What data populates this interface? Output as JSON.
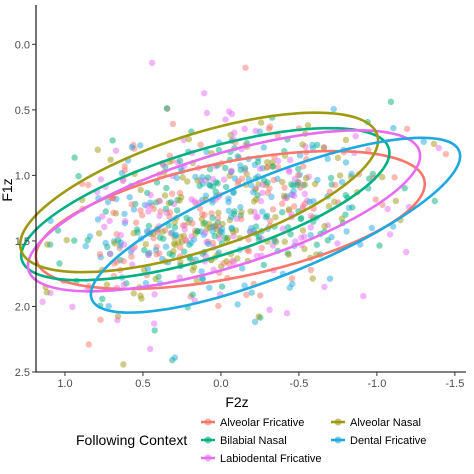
{
  "chart_data": {
    "type": "scatter",
    "xlabel": "F2z",
    "ylabel": "F1z",
    "xlim": [
      1.1857,
      -1.5714
    ],
    "ylim": [
      2.5,
      -0.3
    ],
    "x_reversed": true,
    "y_reversed": true,
    "x_ticks": [
      "1.0",
      "0.5",
      "0.0",
      "-0.5",
      "-1.0",
      "-1.5"
    ],
    "x_tick_values": [
      1.0,
      0.5,
      0.0,
      -0.5,
      -1.0,
      -1.5
    ],
    "y_ticks": [
      "0.0",
      "0.5",
      "1.0",
      "1.5",
      "2.0",
      "2.5"
    ],
    "y_tick_values": [
      0.0,
      0.5,
      1.0,
      1.5,
      2.0,
      2.5
    ],
    "grid": false,
    "legend": {
      "title": "Following Context",
      "placement": "bottom",
      "columns": [
        [
          {
            "label": "Alveolar Fricative",
            "series": 0
          },
          {
            "label": "Bilabial Nasal",
            "series": 1
          },
          {
            "label": "Labiodental Fricative",
            "series": 2
          }
        ],
        [
          {
            "label": "Alveolar Nasal",
            "series": 3
          },
          {
            "label": "Dental Fricative",
            "series": 4
          }
        ]
      ]
    },
    "series": [
      {
        "name": "Alveolar Fricative",
        "color": "#F8766D",
        "ellipse": {
          "cx": -0.06,
          "cy": 1.34,
          "rx": 1.27,
          "ry": 0.44,
          "angle": -11.5
        }
      },
      {
        "name": "Bilabial Nasal",
        "color": "#00B081",
        "ellipse": {
          "cx": 0.1,
          "cy": 1.22,
          "rx": 1.23,
          "ry": 0.41,
          "angle": -17.0
        }
      },
      {
        "name": "Labiodental Fricative",
        "color": "#E76BF3",
        "ellipse": {
          "cx": -0.02,
          "cy": 1.27,
          "rx": 1.31,
          "ry": 0.43,
          "angle": -17.0
        }
      },
      {
        "name": "Alveolar Nasal",
        "color": "#9E9A10",
        "ellipse": {
          "cx": 0.14,
          "cy": 1.13,
          "rx": 1.2,
          "ry": 0.44,
          "angle": -18.0
        }
      },
      {
        "name": "Dental Fricative",
        "color": "#1FA8E0",
        "ellipse": {
          "cx": -0.35,
          "cy": 1.38,
          "rx": 1.27,
          "ry": 0.38,
          "angle": -22.0
        }
      }
    ],
    "points": {
      "count": 700,
      "center_x": -0.02,
      "center_y": 1.28,
      "spread_major": 0.55,
      "spread_minor": 0.28,
      "angle": -16,
      "seed": 11
    }
  }
}
